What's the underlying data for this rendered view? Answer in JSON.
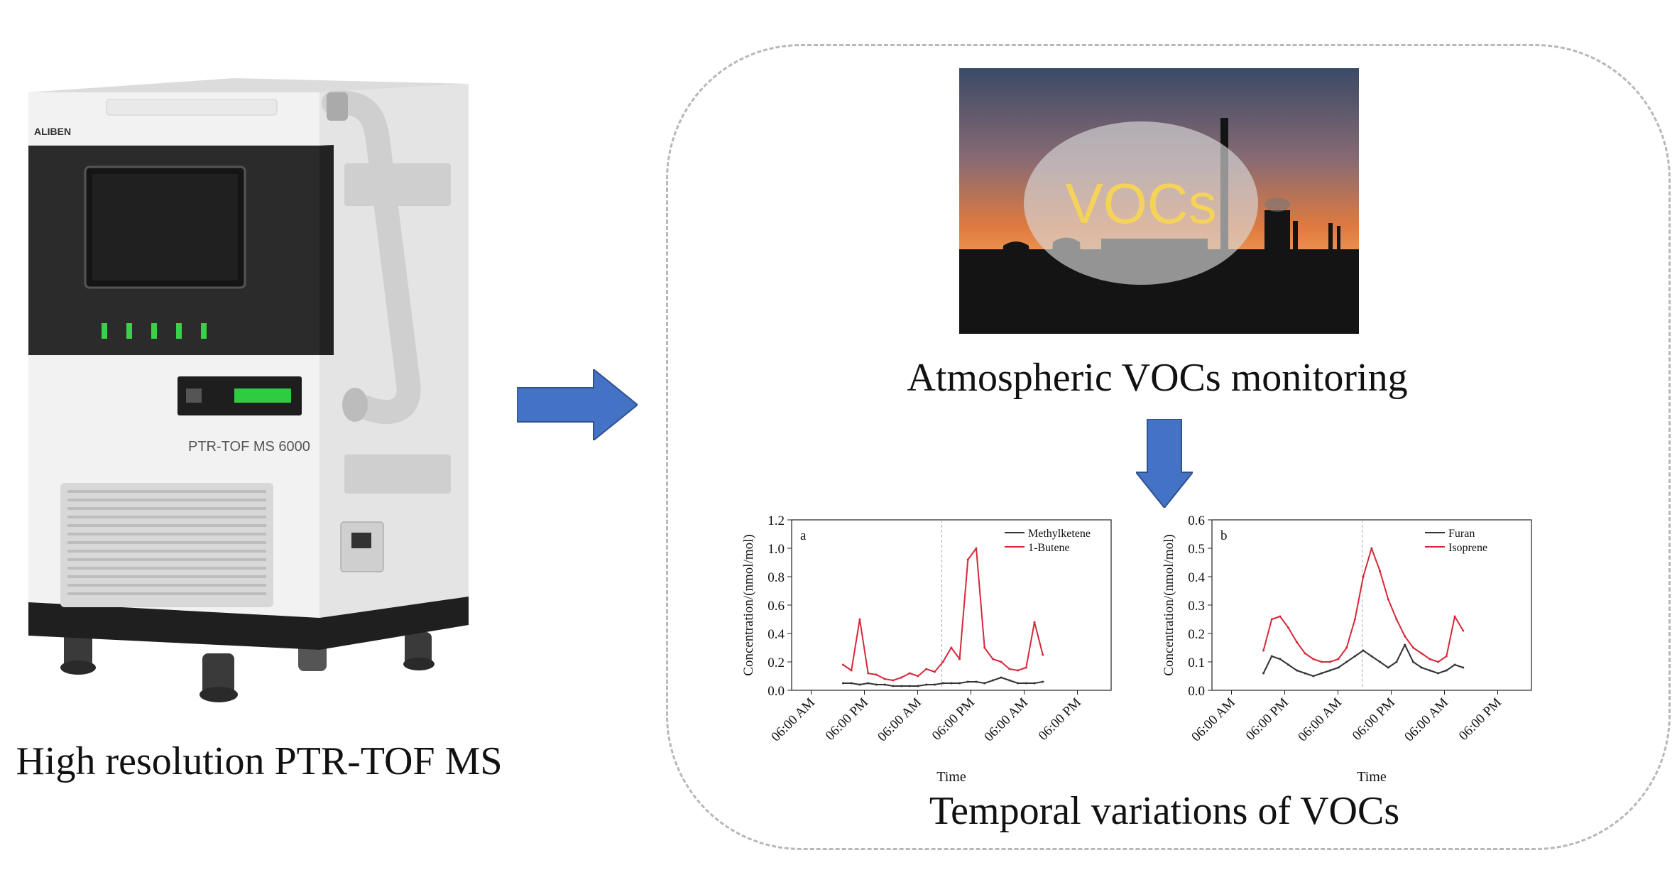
{
  "captions": {
    "instrument": "High resolution PTR-TOF MS",
    "monitoring": "Atmospheric VOCs monitoring",
    "temporal": "Temporal variations of VOCs"
  },
  "instrument": {
    "brand": "ALIBEN",
    "model_label": "PTR-TOF MS 6000",
    "body_color": "#f2f2f2",
    "panel_color": "#2b2b2b"
  },
  "photo": {
    "overlay_text": "VOCs",
    "overlay_text_color": "#f5d35a"
  },
  "arrows": {
    "color": "#4472c4"
  },
  "chart_data": [
    {
      "type": "line",
      "panel_label": "a",
      "ylabel": "Concentration/(nmol/mol)",
      "xlabel": "Time",
      "ylim": [
        0.0,
        1.2
      ],
      "yticks": [
        "0.0",
        "0.2",
        "0.4",
        "0.6",
        "0.8",
        "1.0",
        "1.2"
      ],
      "xticks": [
        "06:00 AM",
        "06:00 PM",
        "06:00 AM",
        "06:00 PM",
        "06:00 AM",
        "06:00 PM"
      ],
      "legend_position": "top-right",
      "series": [
        {
          "name": "Methylketene",
          "color": "#333333",
          "values": [
            0.05,
            0.05,
            0.04,
            0.05,
            0.04,
            0.04,
            0.03,
            0.03,
            0.03,
            0.03,
            0.04,
            0.04,
            0.05,
            0.05,
            0.05,
            0.06,
            0.06,
            0.05,
            0.07,
            0.09,
            0.07,
            0.05,
            0.05,
            0.05,
            0.06
          ]
        },
        {
          "name": "1-Butene",
          "color": "#d62839",
          "values": [
            0.18,
            0.14,
            0.5,
            0.12,
            0.11,
            0.08,
            0.07,
            0.09,
            0.12,
            0.1,
            0.15,
            0.13,
            0.2,
            0.3,
            0.22,
            0.92,
            1.0,
            0.3,
            0.22,
            0.2,
            0.15,
            0.14,
            0.16,
            0.48,
            0.25
          ]
        }
      ]
    },
    {
      "type": "line",
      "panel_label": "b",
      "ylabel": "Concentration/(nmol/mol)",
      "xlabel": "Time",
      "ylim": [
        0.0,
        0.6
      ],
      "yticks": [
        "0.0",
        "0.1",
        "0.2",
        "0.3",
        "0.4",
        "0.5",
        "0.6"
      ],
      "xticks": [
        "06:00 AM",
        "06:00 PM",
        "06:00 AM",
        "06:00 PM",
        "06:00 AM",
        "06:00 PM"
      ],
      "legend_position": "top-right",
      "series": [
        {
          "name": "Furan",
          "color": "#333333",
          "values": [
            0.06,
            0.12,
            0.11,
            0.09,
            0.07,
            0.06,
            0.05,
            0.06,
            0.07,
            0.08,
            0.1,
            0.12,
            0.14,
            0.12,
            0.1,
            0.08,
            0.1,
            0.16,
            0.1,
            0.08,
            0.07,
            0.06,
            0.07,
            0.09,
            0.08
          ]
        },
        {
          "name": "Isoprene",
          "color": "#d62839",
          "values": [
            0.14,
            0.25,
            0.26,
            0.22,
            0.17,
            0.13,
            0.11,
            0.1,
            0.1,
            0.11,
            0.15,
            0.25,
            0.4,
            0.5,
            0.42,
            0.32,
            0.25,
            0.19,
            0.15,
            0.13,
            0.11,
            0.1,
            0.12,
            0.26,
            0.21
          ]
        }
      ]
    }
  ]
}
